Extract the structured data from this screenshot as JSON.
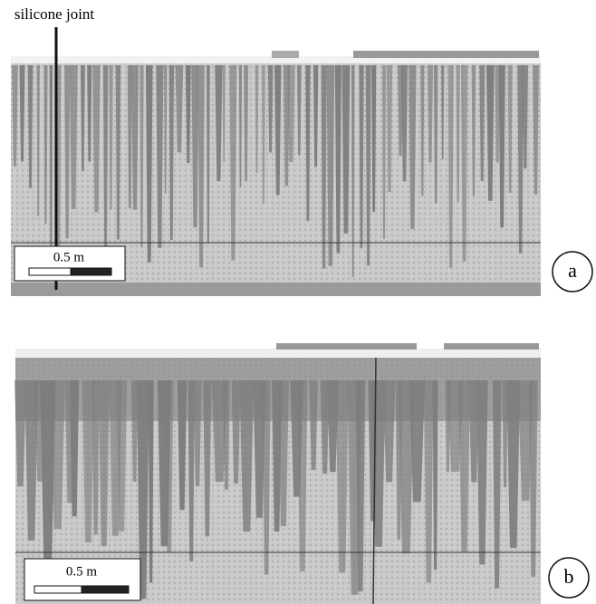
{
  "annotation": "silicone joint",
  "panels": [
    {
      "label": "a",
      "scale_bar": "0.5 m"
    },
    {
      "label": "b",
      "scale_bar": "0.5 m"
    }
  ]
}
